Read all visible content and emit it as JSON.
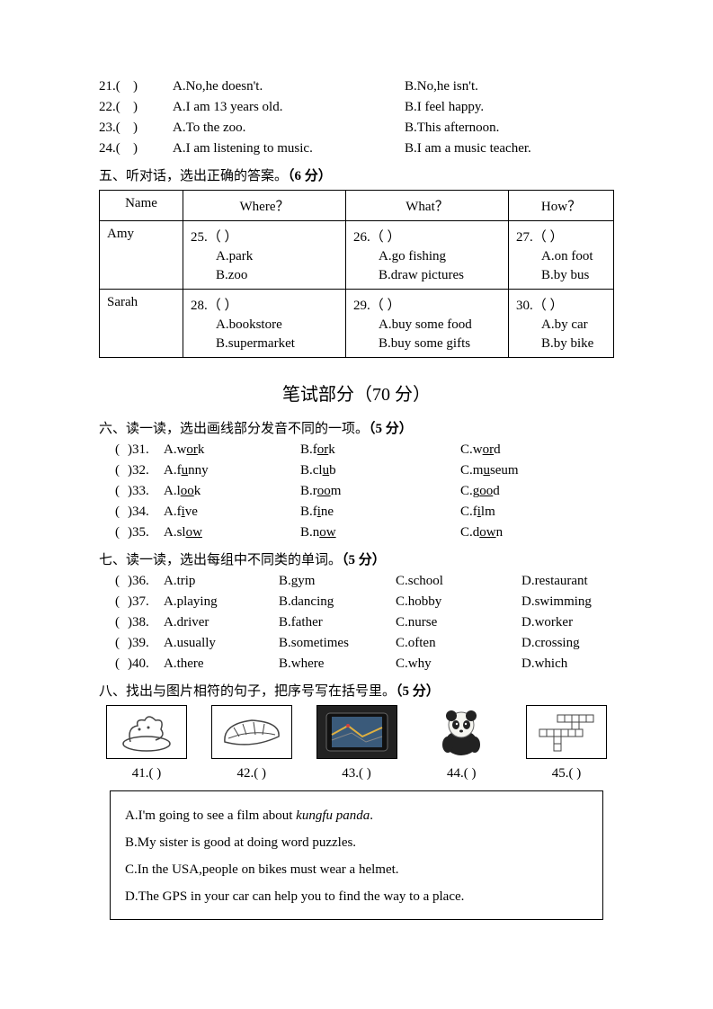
{
  "section4_questions": [
    {
      "num": "21.(",
      "p": ")",
      "a": "A.No,he doesn't.",
      "b": "B.No,he isn't."
    },
    {
      "num": "22.(",
      "p": ")",
      "a": "A.I am 13 years old.",
      "b": "B.I feel happy."
    },
    {
      "num": "23.(",
      "p": ")",
      "a": "A.To the zoo.",
      "b": "B.This afternoon."
    },
    {
      "num": "24.(",
      "p": ")",
      "a": "A.I am listening to music.",
      "b": "B.I am a music teacher."
    }
  ],
  "section5": {
    "title_pre": "五、听对话，选出正确的答案。",
    "title_pts": "（6 分）",
    "headers": {
      "name": "Name",
      "where": "Where？",
      "what": "What？",
      "how": "How？"
    },
    "rows": [
      {
        "name": "Amy",
        "where": {
          "n": "25.（        ）",
          "a": "A.park",
          "b": "B.zoo"
        },
        "what": {
          "n": "26.（        ）",
          "a": "A.go fishing",
          "b": "B.draw pictures"
        },
        "how": {
          "n": "27.（        ）",
          "a": "A.on foot",
          "b": "B.by bus"
        }
      },
      {
        "name": "Sarah",
        "where": {
          "n": "28.（        ）",
          "a": "A.bookstore",
          "b": "B.supermarket"
        },
        "what": {
          "n": "29.（        ）",
          "a": "A.buy some food",
          "b": "B.buy some gifts"
        },
        "how": {
          "n": "30.（        ）",
          "a": "A.by car",
          "b": "B.by bike"
        }
      }
    ]
  },
  "written_title": "笔试部分（70 分）",
  "section6": {
    "title_pre": "六、读一读，选出画线部分发音不同的一项。",
    "title_pts": "（5 分）",
    "items": [
      {
        "n": ")31.",
        "a_pre": "A.w",
        "a_u": "or",
        "a_post": "k",
        "b_pre": "B.f",
        "b_u": "or",
        "b_post": "k",
        "c_pre": "C.w",
        "c_u": "or",
        "c_post": "d"
      },
      {
        "n": ")32.",
        "a_pre": "A.f",
        "a_u": "u",
        "a_post": "nny",
        "b_pre": "B.cl",
        "b_u": "u",
        "b_post": "b",
        "c_pre": "C.m",
        "c_u": "u",
        "c_post": "seum"
      },
      {
        "n": ")33.",
        "a_pre": "A.l",
        "a_u": "oo",
        "a_post": "k",
        "b_pre": "B.r",
        "b_u": "oo",
        "b_post": "m",
        "c_pre": "C.g",
        "c_u": "oo",
        "c_post": "d"
      },
      {
        "n": ")34.",
        "a_pre": "A.f",
        "a_u": "i",
        "a_post": "ve",
        "b_pre": "B.f",
        "b_u": "i",
        "b_post": "ne",
        "c_pre": "C.f",
        "c_u": "i",
        "c_post": "lm"
      },
      {
        "n": ")35.",
        "a_pre": "A.sl",
        "a_u": "ow",
        "a_post": "",
        "b_pre": "B.n",
        "b_u": "ow",
        "b_post": "",
        "c_pre": "C.d",
        "c_u": "ow",
        "c_post": "n"
      }
    ]
  },
  "section7": {
    "title_pre": "七、读一读，选出每组中不同类的单词。",
    "title_pts": "（5 分）",
    "items": [
      {
        "n": ")36.",
        "a": "A.trip",
        "b": "B.gym",
        "c": "C.school",
        "d": "D.restaurant"
      },
      {
        "n": ")37.",
        "a": "A.playing",
        "b": "B.dancing",
        "c": "C.hobby",
        "d": "D.swimming"
      },
      {
        "n": ")38.",
        "a": "A.driver",
        "b": "B.father",
        "c": "C.nurse",
        "d": "D.worker"
      },
      {
        "n": ")39.",
        "a": "A.usually",
        "b": "B.sometimes",
        "c": "C.often",
        "d": "D.crossing"
      },
      {
        "n": ")40.",
        "a": "A.there",
        "b": "B.where",
        "c": "C.why",
        "d": "D.which"
      }
    ]
  },
  "section8": {
    "title_pre": "八、找出与图片相符的句子，把序号写在括号里。",
    "title_pts": "（5 分）",
    "labels": [
      "41.(         )",
      "42.(         )",
      "43.(         )",
      "44.(         )",
      "45.(         )"
    ],
    "choices": {
      "a_pre": "A.I'm going to see a film about ",
      "a_it": "kungfu panda",
      "a_post": ".",
      "b": "B.My sister is good at doing word puzzles.",
      "c": "C.In the USA,people on bikes must wear a helmet.",
      "d": "D.The GPS in your car can help you to find the way to a place."
    }
  },
  "svg": {
    "stroke": "#444",
    "fill_dark": "#555",
    "fill_light": "#ccc"
  }
}
